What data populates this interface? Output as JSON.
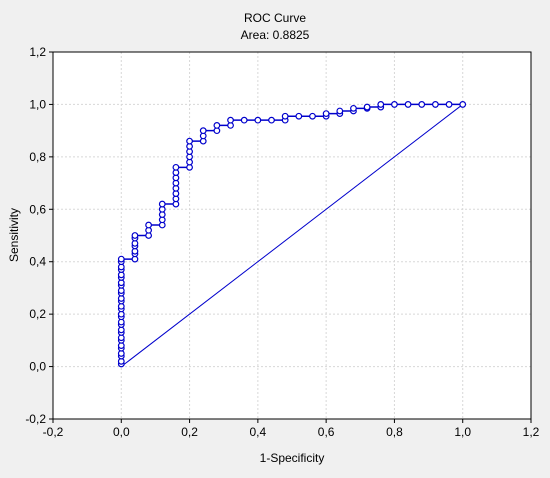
{
  "chart_data": {
    "type": "line",
    "title": "ROC Curve",
    "subtitle": "Area: 0.8825",
    "xlabel": "1-Specificity",
    "ylabel": "Sensitivity",
    "xlim": [
      -0.2,
      1.2
    ],
    "ylim": [
      -0.2,
      1.2
    ],
    "xticks": [
      "-0,2",
      "0,0",
      "0,2",
      "0,4",
      "0,6",
      "0,8",
      "1,0",
      "1,2"
    ],
    "yticks": [
      "-0,2",
      "0,0",
      "0,2",
      "0,4",
      "0,6",
      "0,8",
      "1,0",
      "1,2"
    ],
    "grid": true,
    "legend": "none",
    "colors": {
      "series": "#0000cc",
      "background": "#ffffff",
      "frame": "#000000",
      "grid": "#d8d8d8",
      "window": "#f0f0f0"
    },
    "series": [
      {
        "points": [
          [
            0,
            0.01
          ],
          [
            0,
            0.02
          ],
          [
            0,
            0.04
          ],
          [
            0,
            0.05
          ],
          [
            0,
            0.07
          ],
          [
            0,
            0.08
          ],
          [
            0,
            0.1
          ],
          [
            0,
            0.11
          ],
          [
            0,
            0.13
          ],
          [
            0,
            0.14
          ],
          [
            0,
            0.16
          ],
          [
            0,
            0.17
          ],
          [
            0,
            0.19
          ],
          [
            0,
            0.2
          ],
          [
            0,
            0.22
          ],
          [
            0,
            0.23
          ],
          [
            0,
            0.25
          ],
          [
            0,
            0.26
          ],
          [
            0,
            0.28
          ],
          [
            0,
            0.29
          ],
          [
            0,
            0.31
          ],
          [
            0,
            0.32
          ],
          [
            0,
            0.34
          ],
          [
            0,
            0.35
          ],
          [
            0,
            0.37
          ],
          [
            0,
            0.38
          ],
          [
            0,
            0.4
          ],
          [
            0,
            0.41
          ],
          [
            0.04,
            0.41
          ],
          [
            0.04,
            0.43
          ],
          [
            0.04,
            0.44
          ],
          [
            0.04,
            0.46
          ],
          [
            0.04,
            0.47
          ],
          [
            0.04,
            0.49
          ],
          [
            0.04,
            0.5
          ],
          [
            0.08,
            0.5
          ],
          [
            0.08,
            0.52
          ],
          [
            0.08,
            0.54
          ],
          [
            0.12,
            0.54
          ],
          [
            0.12,
            0.56
          ],
          [
            0.12,
            0.58
          ],
          [
            0.12,
            0.6
          ],
          [
            0.12,
            0.62
          ],
          [
            0.16,
            0.62
          ],
          [
            0.16,
            0.64
          ],
          [
            0.16,
            0.66
          ],
          [
            0.16,
            0.68
          ],
          [
            0.16,
            0.7
          ],
          [
            0.16,
            0.72
          ],
          [
            0.16,
            0.74
          ],
          [
            0.16,
            0.76
          ],
          [
            0.2,
            0.76
          ],
          [
            0.2,
            0.78
          ],
          [
            0.2,
            0.8
          ],
          [
            0.2,
            0.82
          ],
          [
            0.2,
            0.84
          ],
          [
            0.2,
            0.86
          ],
          [
            0.24,
            0.86
          ],
          [
            0.24,
            0.88
          ],
          [
            0.24,
            0.9
          ],
          [
            0.28,
            0.9
          ],
          [
            0.28,
            0.92
          ],
          [
            0.32,
            0.92
          ],
          [
            0.32,
            0.94
          ],
          [
            0.36,
            0.94
          ],
          [
            0.4,
            0.94
          ],
          [
            0.44,
            0.94
          ],
          [
            0.48,
            0.94
          ],
          [
            0.48,
            0.955
          ],
          [
            0.52,
            0.955
          ],
          [
            0.56,
            0.955
          ],
          [
            0.6,
            0.955
          ],
          [
            0.6,
            0.965
          ],
          [
            0.64,
            0.965
          ],
          [
            0.64,
            0.975
          ],
          [
            0.68,
            0.975
          ],
          [
            0.68,
            0.985
          ],
          [
            0.72,
            0.985
          ],
          [
            0.72,
            0.99
          ],
          [
            0.76,
            0.99
          ],
          [
            0.76,
            1.0
          ],
          [
            0.8,
            1.0
          ],
          [
            0.84,
            1.0
          ],
          [
            0.88,
            1.0
          ],
          [
            0.92,
            1.0
          ],
          [
            0.96,
            1.0
          ],
          [
            1.0,
            1.0
          ]
        ]
      },
      {
        "points": [
          [
            0,
            0
          ],
          [
            1,
            1
          ]
        ]
      }
    ]
  }
}
